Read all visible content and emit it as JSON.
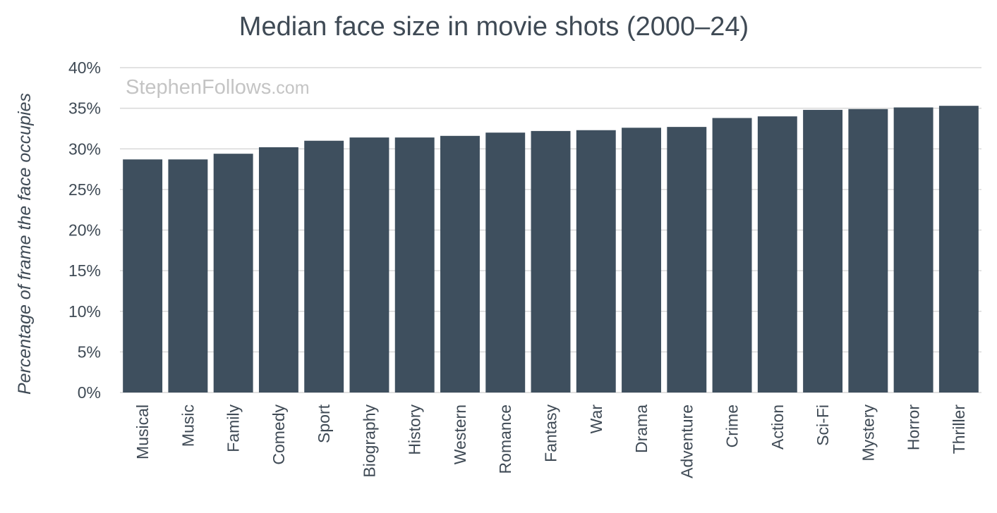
{
  "chart_data": {
    "type": "bar",
    "title": "Median face size in movie shots (2000–24)",
    "xlabel": "",
    "ylabel": "Percentage of frame the face occupies",
    "categories": [
      "Musical",
      "Music",
      "Family",
      "Comedy",
      "Sport",
      "Biography",
      "History",
      "Western",
      "Romance",
      "Fantasy",
      "War",
      "Drama",
      "Adventure",
      "Crime",
      "Action",
      "Sci-Fi",
      "Mystery",
      "Horror",
      "Thriller"
    ],
    "values": [
      28.7,
      28.7,
      29.4,
      30.2,
      31.0,
      31.4,
      31.4,
      31.6,
      32.0,
      32.2,
      32.3,
      32.6,
      32.7,
      33.8,
      34.0,
      34.8,
      34.9,
      35.1,
      35.3
    ],
    "ylim": [
      0,
      40
    ],
    "yticks": [
      0,
      5,
      10,
      15,
      20,
      25,
      30,
      35,
      40
    ],
    "ytick_suffix": "%",
    "grid": true,
    "bar_color": "#3e4f5e"
  },
  "watermark": {
    "main": "StephenFollows",
    "suffix": ".com"
  }
}
